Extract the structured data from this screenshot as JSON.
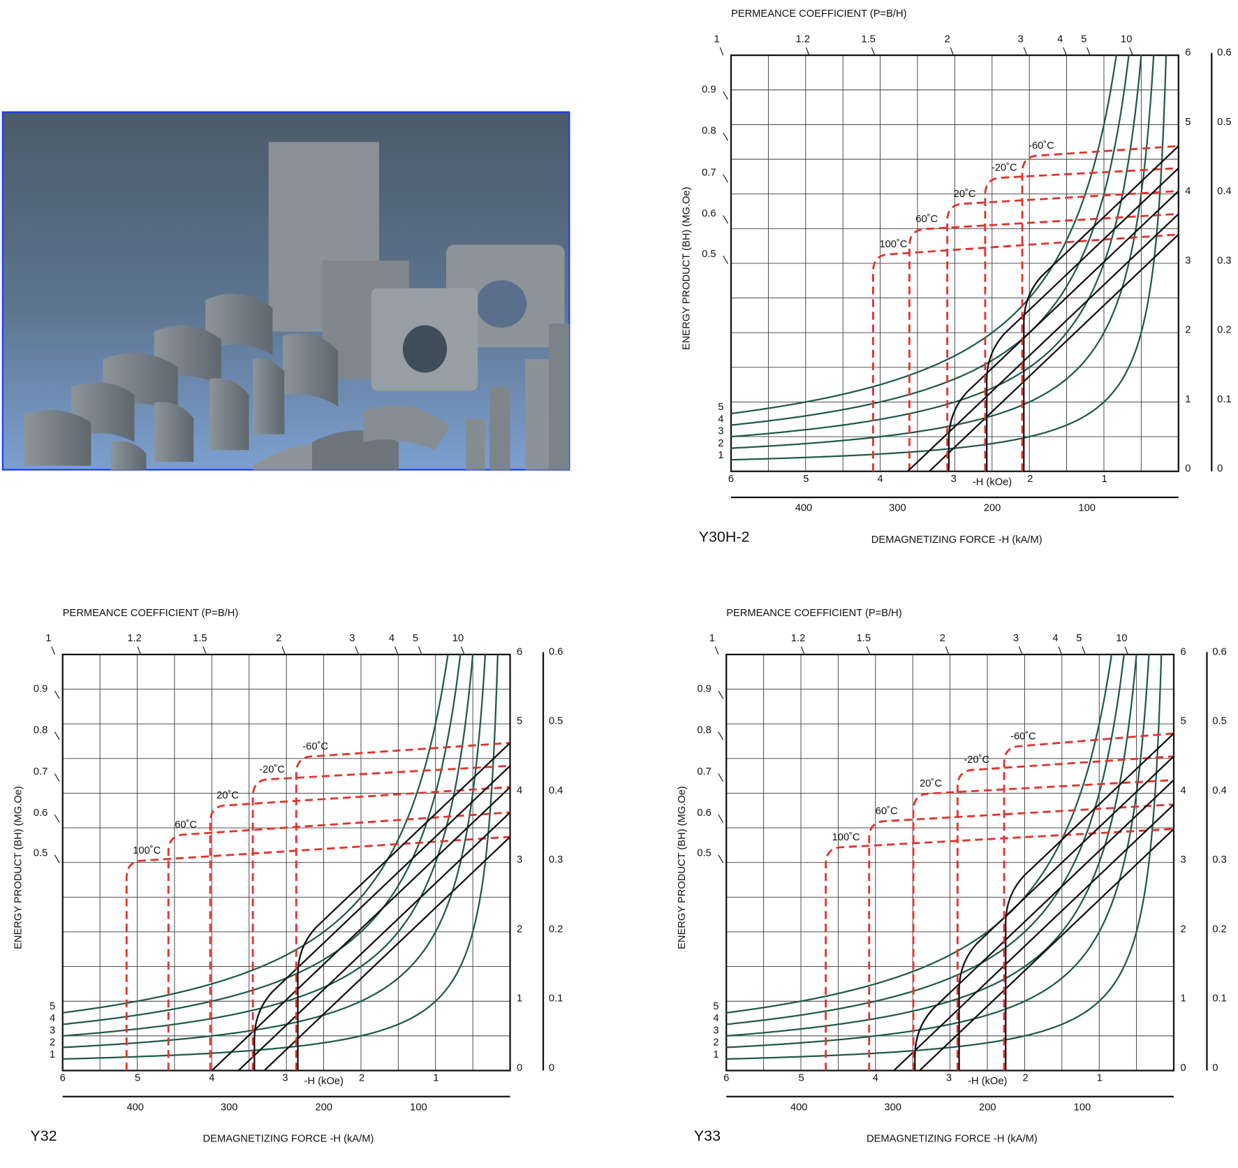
{
  "charts": [
    {
      "name": "Y30H-2",
      "permeance_label": "PERMEANCE COEFFICIENT (P=B/H)",
      "permeance_ticks": [
        1,
        1.2,
        1.5,
        2,
        3,
        4,
        5,
        10
      ],
      "curve_ticks": [
        0.9,
        0.8,
        0.7,
        0.6,
        0.5
      ],
      "bh_ticks": [
        5,
        4,
        3,
        2,
        1
      ],
      "b_kg_ticks": [
        0,
        1,
        2,
        3,
        4,
        5,
        6
      ],
      "b_t_ticks": [
        0,
        0.1,
        0.2,
        0.3,
        0.4,
        0.5,
        0.6
      ],
      "h_koe_ticks": [
        6,
        5,
        4,
        3,
        2,
        1
      ],
      "h_koe_label": "-H (kOe)",
      "h_kam_ticks": [
        400,
        300,
        200,
        100
      ],
      "x_label": "DEMAGNETIZING  FORCE  -H (kA/M)",
      "y_label": "ENERGY  PRODUCT (BH)  (MG.Oe)",
      "temperatures": [
        "100˚C",
        "60˚C",
        "20˚C",
        "-20˚C",
        "-60˚C"
      ]
    },
    {
      "name": "Y32",
      "permeance_label": "PERMEANCE COEFFICIENT (P=B/H)",
      "permeance_ticks": [
        1,
        1.2,
        1.5,
        2,
        3,
        4,
        5,
        10
      ],
      "curve_ticks": [
        0.9,
        0.8,
        0.7,
        0.6,
        0.5
      ],
      "bh_ticks": [
        5,
        4,
        3,
        2,
        1
      ],
      "b_kg_ticks": [
        0,
        1,
        2,
        3,
        4,
        5,
        6
      ],
      "b_t_ticks": [
        0,
        0.1,
        0.2,
        0.3,
        0.4,
        0.5,
        0.6
      ],
      "h_koe_ticks": [
        6,
        5,
        4,
        3,
        2,
        1
      ],
      "h_koe_label": "-H (kOe)",
      "h_kam_ticks": [
        400,
        300,
        200,
        100
      ],
      "x_label": "DEMAGNETIZING  FORCE  -H (kA/M)",
      "y_label": "ENERGY  PRODUCT (BH)  (MG.Oe)",
      "temperatures": [
        "100˚C",
        "60˚C",
        "20˚C",
        "-20˚C",
        "-60˚C"
      ]
    },
    {
      "name": "Y33",
      "permeance_label": "PERMEANCE COEFFICIENT (P=B/H)",
      "permeance_ticks": [
        1,
        1.2,
        1.5,
        2,
        3,
        4,
        5,
        10
      ],
      "curve_ticks": [
        0.9,
        0.8,
        0.7,
        0.6,
        0.5
      ],
      "bh_ticks": [
        5,
        4,
        3,
        2,
        1
      ],
      "b_kg_ticks": [
        0,
        1,
        2,
        3,
        4,
        5,
        6
      ],
      "b_t_ticks": [
        0,
        0.1,
        0.2,
        0.3,
        0.4,
        0.5,
        0.6
      ],
      "h_koe_ticks": [
        6,
        5,
        4,
        3,
        2,
        1
      ],
      "h_koe_label": "-H (kOe)",
      "h_kam_ticks": [
        400,
        300,
        200,
        100
      ],
      "x_label": "DEMAGNETIZING  FORCE  -H (kA/M)",
      "y_label": "ENERGY  PRODUCT (BH)  (MG.Oe)",
      "temperatures": [
        "100˚C",
        "60˚C",
        "20˚C",
        "-20˚C",
        "-60˚C"
      ]
    }
  ]
}
